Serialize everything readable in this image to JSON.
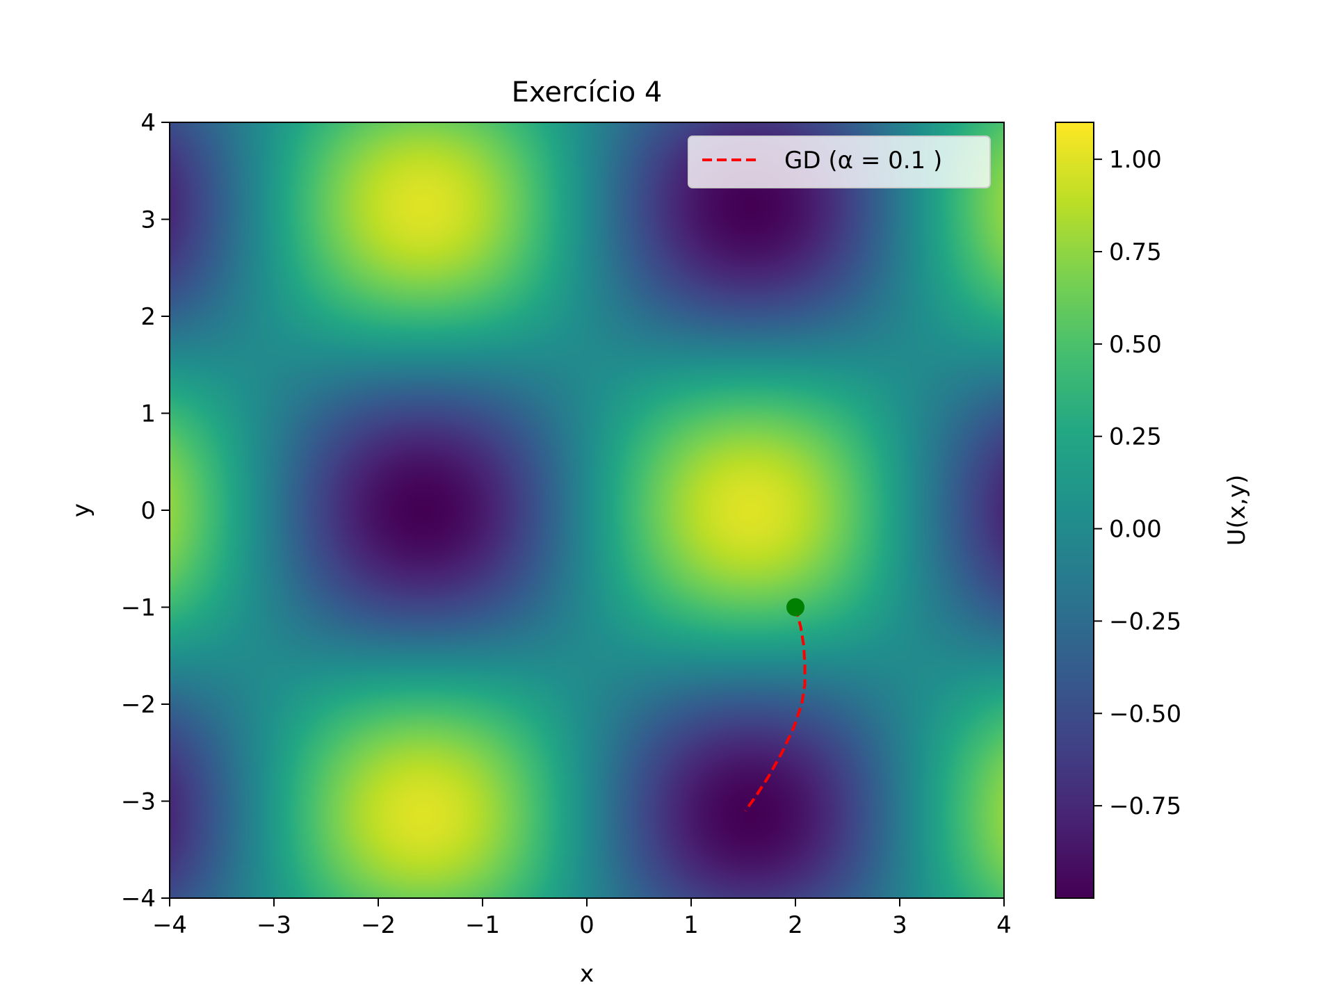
{
  "chart_data": {
    "type": "heatmap",
    "title": "Exercício 4",
    "xlabel": "x",
    "ylabel": "y",
    "xlim": [
      -4,
      4
    ],
    "ylim": [
      -4,
      4
    ],
    "x_ticks": [
      -4,
      -3,
      -2,
      -1,
      0,
      1,
      2,
      3,
      4
    ],
    "y_ticks": [
      -4,
      -3,
      -2,
      -1,
      0,
      1,
      2,
      3,
      4
    ],
    "x_tick_labels": [
      "−4",
      "−3",
      "−2",
      "−1",
      "0",
      "1",
      "2",
      "3",
      "4"
    ],
    "y_tick_labels": [
      "−4",
      "−3",
      "−2",
      "−1",
      "0",
      "1",
      "2",
      "3",
      "4"
    ],
    "colormap": "viridis",
    "field": {
      "minima": [
        [
          -1.57,
          0.0
        ],
        [
          1.57,
          3.0
        ],
        [
          1.57,
          -3.0
        ],
        [
          4.0,
          0.0
        ]
      ],
      "maxima": [
        [
          1.57,
          0.0
        ],
        [
          -1.57,
          3.14
        ],
        [
          -1.57,
          -3.14
        ],
        [
          -4.0,
          0.0
        ]
      ]
    },
    "colorbar": {
      "label": "U(x,y)",
      "range": [
        -1.0,
        1.1
      ],
      "ticks": [
        1.0,
        0.75,
        0.5,
        0.25,
        0.0,
        -0.25,
        -0.5,
        -0.75
      ],
      "tick_labels": [
        "1.00",
        "0.75",
        "0.50",
        "0.25",
        "0.00",
        "−0.25",
        "−0.50",
        "−0.75"
      ]
    },
    "series": [
      {
        "name": "GD (α = 0.1 )",
        "style": "dashed",
        "color": "#ff0000",
        "x": [
          2.0,
          2.05,
          2.08,
          2.09,
          2.09,
          2.06,
          1.98,
          1.87,
          1.74,
          1.62,
          1.52
        ],
        "y": [
          -1.0,
          -1.2,
          -1.4,
          -1.6,
          -1.8,
          -2.0,
          -2.25,
          -2.5,
          -2.75,
          -2.95,
          -3.1
        ]
      }
    ],
    "start_point": {
      "x": 2.0,
      "y": -1.0,
      "color": "#008000"
    },
    "legend": {
      "position": "top-right"
    }
  }
}
